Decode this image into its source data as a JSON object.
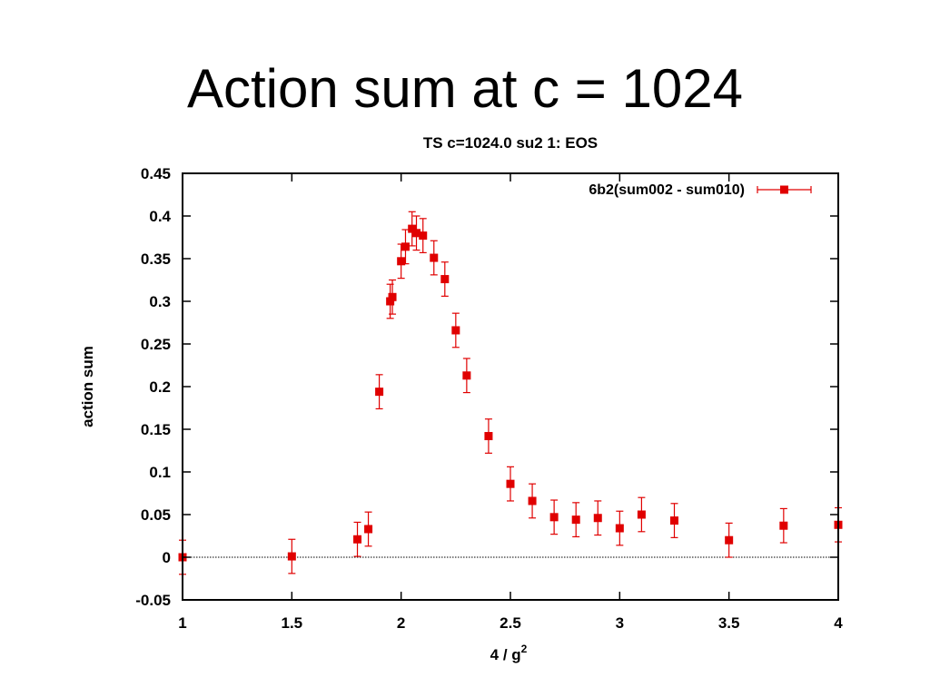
{
  "slide": {
    "title": "Action sum at c = 1024"
  },
  "chart_data": {
    "type": "scatter",
    "title": "TS c=1024.0 su2 1: EOS",
    "xlabel": "4 / g",
    "xlabel_sup": "2",
    "ylabel": "action sum",
    "xlim": [
      1,
      4
    ],
    "ylim": [
      -0.05,
      0.45
    ],
    "x_ticks": [
      1,
      1.5,
      2,
      2.5,
      3,
      3.5,
      4
    ],
    "x_tick_labels": [
      "1",
      "1.5",
      "2",
      "2.5",
      "3",
      "3.5",
      "4"
    ],
    "y_ticks": [
      -0.05,
      0,
      0.05,
      0.1,
      0.15,
      0.2,
      0.25,
      0.3,
      0.35,
      0.4,
      0.45
    ],
    "y_tick_labels": [
      "-0.05",
      "0",
      "0.05",
      "0.1",
      "0.15",
      "0.2",
      "0.25",
      "0.3",
      "0.35",
      "0.4",
      "0.45"
    ],
    "zero_line": true,
    "grid": false,
    "legend_position": "top-right",
    "series": [
      {
        "name": "6b2(sum002 - sum010)",
        "color": "#e00000",
        "points": [
          {
            "x": 1.0,
            "y": 0.0,
            "err": 0.02
          },
          {
            "x": 1.5,
            "y": 0.001,
            "err": 0.02
          },
          {
            "x": 1.8,
            "y": 0.021,
            "err": 0.02
          },
          {
            "x": 1.85,
            "y": 0.033,
            "err": 0.02
          },
          {
            "x": 1.9,
            "y": 0.194,
            "err": 0.02
          },
          {
            "x": 1.95,
            "y": 0.3,
            "err": 0.02
          },
          {
            "x": 1.96,
            "y": 0.305,
            "err": 0.02
          },
          {
            "x": 2.0,
            "y": 0.347,
            "err": 0.02
          },
          {
            "x": 2.02,
            "y": 0.364,
            "err": 0.02
          },
          {
            "x": 2.05,
            "y": 0.385,
            "err": 0.02
          },
          {
            "x": 2.07,
            "y": 0.38,
            "err": 0.02
          },
          {
            "x": 2.1,
            "y": 0.377,
            "err": 0.02
          },
          {
            "x": 2.15,
            "y": 0.351,
            "err": 0.02
          },
          {
            "x": 2.2,
            "y": 0.326,
            "err": 0.02
          },
          {
            "x": 2.25,
            "y": 0.266,
            "err": 0.02
          },
          {
            "x": 2.3,
            "y": 0.213,
            "err": 0.02
          },
          {
            "x": 2.4,
            "y": 0.142,
            "err": 0.02
          },
          {
            "x": 2.5,
            "y": 0.086,
            "err": 0.02
          },
          {
            "x": 2.6,
            "y": 0.066,
            "err": 0.02
          },
          {
            "x": 2.7,
            "y": 0.047,
            "err": 0.02
          },
          {
            "x": 2.8,
            "y": 0.044,
            "err": 0.02
          },
          {
            "x": 2.9,
            "y": 0.046,
            "err": 0.02
          },
          {
            "x": 3.0,
            "y": 0.034,
            "err": 0.02
          },
          {
            "x": 3.1,
            "y": 0.05,
            "err": 0.02
          },
          {
            "x": 3.25,
            "y": 0.043,
            "err": 0.02
          },
          {
            "x": 3.5,
            "y": 0.02,
            "err": 0.02
          },
          {
            "x": 3.75,
            "y": 0.037,
            "err": 0.02
          },
          {
            "x": 4.0,
            "y": 0.038,
            "err": 0.02
          }
        ]
      }
    ]
  }
}
